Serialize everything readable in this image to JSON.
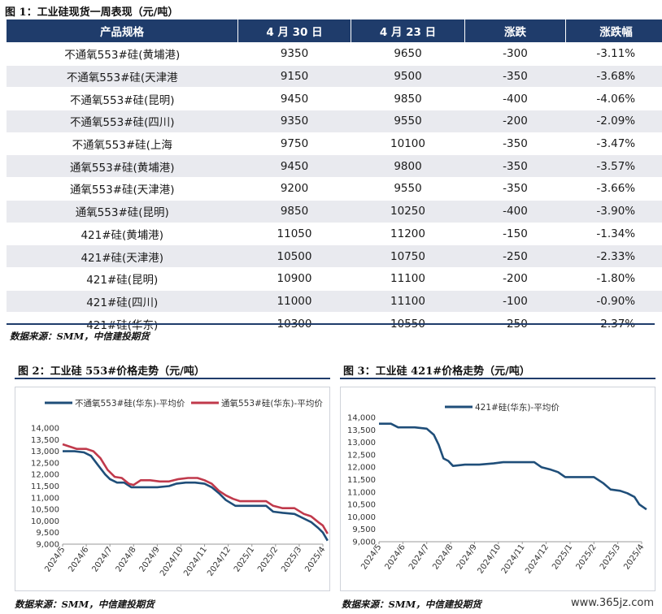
{
  "fig1": {
    "title": "图 1：工业硅现货一周表现（元/吨）",
    "headers": [
      "产品规格",
      "4 月 30 日",
      "4 月 23 日",
      "涨跌",
      "涨跌幅"
    ],
    "rows": [
      [
        "不通氧553#硅(黄埔港)",
        "9350",
        "9650",
        "-300",
        "-3.11%"
      ],
      [
        "不通氧553#硅(天津港",
        "9150",
        "9500",
        "-350",
        "-3.68%"
      ],
      [
        "不通氧553#硅(昆明)",
        "9450",
        "9850",
        "-400",
        "-4.06%"
      ],
      [
        "不通氧553#硅(四川)",
        "9350",
        "9550",
        "-200",
        "-2.09%"
      ],
      [
        "不通氧553#硅(上海",
        "9750",
        "10100",
        "-350",
        "-3.47%"
      ],
      [
        "通氧553#硅(黄埔港)",
        "9450",
        "9800",
        "-350",
        "-3.57%"
      ],
      [
        "通氧553#硅(天津港)",
        "9200",
        "9550",
        "-350",
        "-3.66%"
      ],
      [
        "通氧553#硅(昆明)",
        "9850",
        "10250",
        "-400",
        "-3.90%"
      ],
      [
        "421#硅(黄埔港)",
        "11050",
        "11200",
        "-150",
        "-1.34%"
      ],
      [
        "421#硅(天津港)",
        "10500",
        "10750",
        "-250",
        "-2.33%"
      ],
      [
        "421#硅(昆明)",
        "10900",
        "11100",
        "-200",
        "-1.80%"
      ],
      [
        "421#硅(四川)",
        "11000",
        "11100",
        "-100",
        "-0.90%"
      ],
      [
        "421#硅(华东)",
        "10300",
        "10550",
        "-250",
        "-2.37%"
      ]
    ],
    "source": "数据来源：SMM，中信建投期货"
  },
  "fig2": {
    "title": "图 2：工业硅 553#价格走势（元/吨）",
    "source": "数据来源：SMM，中信建投期货"
  },
  "fig3": {
    "title": "图 3：工业硅 421#价格走势（元/吨）",
    "source": "数据来源：SMM，中信建投期货"
  },
  "watermark": "www.365jz.com",
  "colors": {
    "header_bg": "#1f3c6b",
    "stripe": "#e9eaef",
    "series_navy": "#1f4e79",
    "series_red": "#c0394b"
  },
  "chart_data": [
    {
      "type": "line",
      "x_ticks": [
        "2024/5",
        "2024/6",
        "2024/7",
        "2024/8",
        "2024/9",
        "2024/10",
        "2024/11",
        "2024/12",
        "2025/1",
        "2025/2",
        "2025/3",
        "2025/4"
      ],
      "ylim": [
        9000,
        14000
      ],
      "y_ticks": [
        "9,000",
        "9,500",
        "10,000",
        "10,500",
        "11,000",
        "11,500",
        "12,000",
        "12,500",
        "13,000",
        "13,500",
        "14,000"
      ],
      "legend_position": "top",
      "series": [
        {
          "name": "不通氧553#硅(华东)-平均价",
          "color": "#1f4e79",
          "points": [
            [
              0,
              13000
            ],
            [
              0.5,
              13000
            ],
            [
              0.9,
              12950
            ],
            [
              1.2,
              12800
            ],
            [
              1.5,
              12400
            ],
            [
              1.8,
              12000
            ],
            [
              2.0,
              11800
            ],
            [
              2.3,
              11650
            ],
            [
              2.6,
              11650
            ],
            [
              2.9,
              11450
            ],
            [
              3.2,
              11450
            ],
            [
              3.5,
              11450
            ],
            [
              4.0,
              11450
            ],
            [
              4.5,
              11500
            ],
            [
              4.8,
              11600
            ],
            [
              5.2,
              11650
            ],
            [
              5.6,
              11650
            ],
            [
              6.0,
              11600
            ],
            [
              6.3,
              11450
            ],
            [
              6.6,
              11200
            ],
            [
              6.9,
              10900
            ],
            [
              7.3,
              10650
            ],
            [
              7.8,
              10650
            ],
            [
              8.2,
              10650
            ],
            [
              8.6,
              10650
            ],
            [
              8.9,
              10400
            ],
            [
              9.3,
              10350
            ],
            [
              9.8,
              10300
            ],
            [
              10.2,
              10100
            ],
            [
              10.5,
              9950
            ],
            [
              10.8,
              9700
            ],
            [
              11.0,
              9500
            ],
            [
              11.2,
              9150
            ]
          ]
        },
        {
          "name": "通氧553#硅(华东)-平均价",
          "color": "#c0394b",
          "points": [
            [
              0,
              13300
            ],
            [
              0.3,
              13200
            ],
            [
              0.6,
              13100
            ],
            [
              1.0,
              13100
            ],
            [
              1.3,
              13000
            ],
            [
              1.6,
              12700
            ],
            [
              1.9,
              12200
            ],
            [
              2.2,
              11900
            ],
            [
              2.5,
              11850
            ],
            [
              2.8,
              11600
            ],
            [
              3.0,
              11550
            ],
            [
              3.3,
              11750
            ],
            [
              3.7,
              11750
            ],
            [
              4.1,
              11700
            ],
            [
              4.5,
              11700
            ],
            [
              4.9,
              11800
            ],
            [
              5.3,
              11850
            ],
            [
              5.7,
              11850
            ],
            [
              6.0,
              11750
            ],
            [
              6.3,
              11600
            ],
            [
              6.6,
              11300
            ],
            [
              6.9,
              11100
            ],
            [
              7.2,
              10950
            ],
            [
              7.5,
              10850
            ],
            [
              7.9,
              10850
            ],
            [
              8.3,
              10850
            ],
            [
              8.6,
              10850
            ],
            [
              8.9,
              10650
            ],
            [
              9.3,
              10550
            ],
            [
              9.8,
              10550
            ],
            [
              10.2,
              10300
            ],
            [
              10.5,
              10200
            ],
            [
              10.8,
              9950
            ],
            [
              11.0,
              9800
            ],
            [
              11.2,
              9450
            ]
          ]
        }
      ]
    },
    {
      "type": "line",
      "x_ticks": [
        "2024/5",
        "2024/6",
        "2024/7",
        "2024/8",
        "2024/9",
        "2024/10",
        "2024/11",
        "2024/12",
        "2025/1",
        "2025/2",
        "2025/3",
        "2025/4"
      ],
      "ylim": [
        9000,
        14000
      ],
      "y_ticks": [
        "9,000",
        "9,500",
        "10,000",
        "10,500",
        "11,000",
        "11,500",
        "12,000",
        "12,500",
        "13,000",
        "13,500",
        "14,000"
      ],
      "legend_position": "top",
      "series": [
        {
          "name": "421#硅(华东)-平均价",
          "color": "#1f4e79",
          "points": [
            [
              0,
              13750
            ],
            [
              0.5,
              13750
            ],
            [
              0.8,
              13600
            ],
            [
              1.5,
              13600
            ],
            [
              2.0,
              13550
            ],
            [
              2.3,
              13300
            ],
            [
              2.5,
              12900
            ],
            [
              2.7,
              12350
            ],
            [
              2.9,
              12250
            ],
            [
              3.1,
              12050
            ],
            [
              3.6,
              12100
            ],
            [
              4.2,
              12100
            ],
            [
              4.8,
              12150
            ],
            [
              5.2,
              12200
            ],
            [
              5.8,
              12200
            ],
            [
              6.5,
              12200
            ],
            [
              6.8,
              12000
            ],
            [
              7.2,
              11900
            ],
            [
              7.5,
              11800
            ],
            [
              7.8,
              11600
            ],
            [
              8.3,
              11600
            ],
            [
              8.7,
              11600
            ],
            [
              9.0,
              11600
            ],
            [
              9.4,
              11350
            ],
            [
              9.7,
              11100
            ],
            [
              10.1,
              11050
            ],
            [
              10.4,
              10950
            ],
            [
              10.7,
              10800
            ],
            [
              10.9,
              10500
            ],
            [
              11.2,
              10300
            ]
          ]
        }
      ]
    }
  ]
}
